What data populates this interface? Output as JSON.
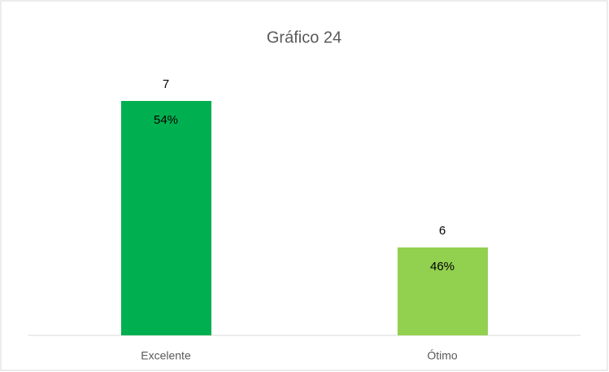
{
  "chart_data": {
    "type": "bar",
    "title": "Gráfico 24",
    "categories": [
      "Excelente",
      "Ótimo"
    ],
    "values": [
      7,
      6
    ],
    "percent_labels": [
      "54%",
      "46%"
    ],
    "colors": [
      "#00b050",
      "#92d050"
    ],
    "ylim": [
      5.4,
      7.2
    ],
    "grid": false
  }
}
